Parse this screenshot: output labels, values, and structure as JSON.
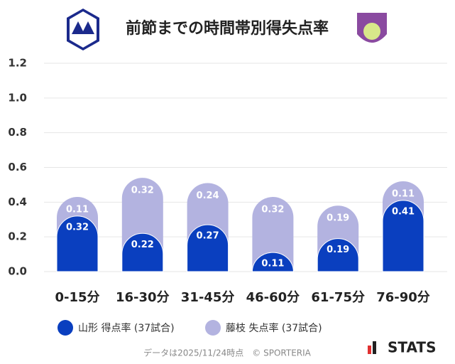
{
  "chart_data": {
    "type": "stacked-bar",
    "title": "前節までの時間帯別得失点率",
    "categories": [
      "0-15分",
      "16-30分",
      "31-45分",
      "46-60分",
      "61-75分",
      "76-90分"
    ],
    "series": [
      {
        "name": "山形 得点率 (37試合)",
        "color": "#0a3fbf",
        "values": [
          0.32,
          0.22,
          0.27,
          0.11,
          0.19,
          0.41
        ]
      },
      {
        "name": "藤枝 失点率 (37試合)",
        "color": "#b3b3e0",
        "values": [
          0.11,
          0.32,
          0.24,
          0.32,
          0.19,
          0.11
        ]
      }
    ],
    "ylim": [
      0,
      1.2
    ],
    "yticks": [
      {
        "value": 0,
        "label": "0.0"
      },
      0.2,
      0.4,
      0.6,
      0.8,
      {
        "value": 1,
        "label": "1.0"
      },
      1.2
    ],
    "grid": true,
    "source": "データは2025/11/24時点　© SPORTERIA",
    "brand": "STATS"
  }
}
